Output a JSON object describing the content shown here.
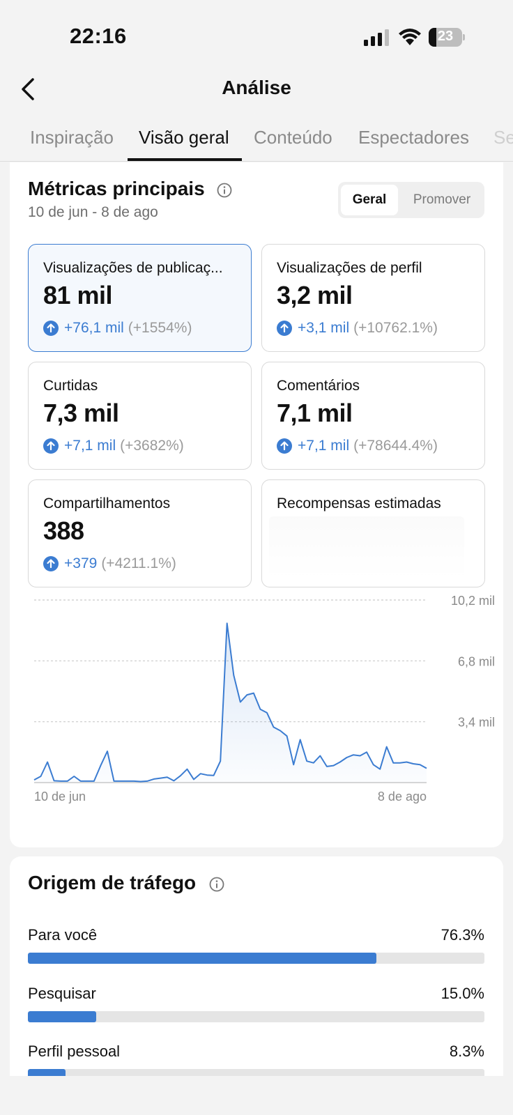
{
  "status": {
    "time": "22:16",
    "battery_level": "23",
    "battery_fraction": 0.23
  },
  "nav": {
    "title": "Análise",
    "back_icon": "chevron-left-icon"
  },
  "tabs": [
    {
      "label": "Inspiração",
      "active": false
    },
    {
      "label": "Visão geral",
      "active": true
    },
    {
      "label": "Conteúdo",
      "active": false
    },
    {
      "label": "Espectadores",
      "active": false
    },
    {
      "label": "Se",
      "active": false
    }
  ],
  "main_metrics": {
    "title": "Métricas principais",
    "date_range": "10 de jun - 8 de ago",
    "segment": {
      "options": [
        "Geral",
        "Promover"
      ],
      "selected": "Geral"
    },
    "cards": [
      {
        "label": "Visualizações de publicaç...",
        "value": "81 mil",
        "change": "+76,1 mil",
        "change_pct": "(+1554%)",
        "selected": true
      },
      {
        "label": "Visualizações de perfil",
        "value": "3,2 mil",
        "change": "+3,1 mil",
        "change_pct": "(+10762.1%)",
        "selected": false
      },
      {
        "label": "Curtidas",
        "value": "7,3 mil",
        "change": "+7,1 mil",
        "change_pct": "(+3682%)",
        "selected": false
      },
      {
        "label": "Comentários",
        "value": "7,1 mil",
        "change": "+7,1 mil",
        "change_pct": "(+78644.4%)",
        "selected": false
      },
      {
        "label": "Compartilhamentos",
        "value": "388",
        "change": "+379",
        "change_pct": "(+4211.1%)",
        "selected": false
      },
      {
        "label": "Recompensas estimadas",
        "value": "",
        "change": "",
        "change_pct": "",
        "selected": false
      }
    ]
  },
  "chart_data": {
    "type": "area",
    "title": "",
    "xlabel": "",
    "ylabel": "",
    "x_start_label": "10 de jun",
    "x_end_label": "8 de ago",
    "y_ticks": [
      {
        "value": 3400,
        "label": "3,4 mil"
      },
      {
        "value": 6800,
        "label": "6,8 mil"
      },
      {
        "value": 10200,
        "label": "10,2 mil"
      }
    ],
    "ylim": [
      0,
      10200
    ],
    "grid": true,
    "line_color": "#3b7cd1",
    "series": [
      {
        "values": [
          150,
          350,
          1150,
          100,
          80,
          80,
          350,
          80,
          80,
          80,
          950,
          1750,
          80,
          80,
          80,
          80,
          60,
          80,
          200,
          250,
          300,
          100,
          380,
          750,
          180,
          500,
          420,
          400,
          1200,
          8900,
          6000,
          4500,
          4900,
          5000,
          4100,
          3900,
          3100,
          2900,
          2600,
          1000,
          2400,
          1200,
          1100,
          1500,
          900,
          950,
          1150,
          1400,
          1550,
          1500,
          1700,
          1000,
          750,
          2000,
          1100,
          1100,
          1150,
          1050,
          1000,
          800
        ]
      }
    ]
  },
  "traffic": {
    "title": "Origem de tráfego",
    "rows": [
      {
        "label": "Para você",
        "pct": "76.3%",
        "fraction": 0.763
      },
      {
        "label": "Pesquisar",
        "pct": "15.0%",
        "fraction": 0.15
      },
      {
        "label": "Perfil pessoal",
        "pct": "8.3%",
        "fraction": 0.083
      }
    ]
  }
}
